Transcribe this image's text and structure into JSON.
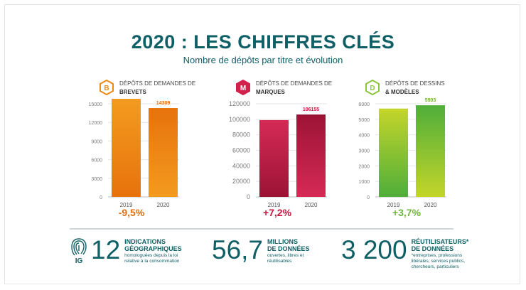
{
  "header": {
    "title": "2020 : LES CHIFFRES CLÉS",
    "subtitle": "Nombre de dépôts par titre et évolution"
  },
  "panels": [
    {
      "badge": "B",
      "line1": "DÉPÔTS DE DEMANDES DE",
      "line2": "BREVETS",
      "change": "-9,5%",
      "color": "#ef8a10"
    },
    {
      "badge": "M",
      "line1": "DÉPÔTS DE DEMANDES DE",
      "line2": "MARQUES",
      "change": "+7,2%",
      "color": "#d3214c"
    },
    {
      "badge": "D",
      "line1": "DÉPÔTS DE DESSINS",
      "line2": "& MODÈLES",
      "change": "+3,7%",
      "color": "#8cc63f"
    }
  ],
  "chart_data": [
    {
      "type": "bar",
      "categories": [
        "2019",
        "2020"
      ],
      "values": [
        15800,
        14309
      ],
      "value_labels": [
        "",
        "14309"
      ],
      "ylim": [
        0,
        15000
      ],
      "yticks": [
        "0",
        "3000",
        "6000",
        "9000",
        "12000",
        "15000"
      ],
      "colors": [
        "#f39b1f",
        "#e7720c"
      ]
    },
    {
      "type": "bar",
      "categories": [
        "2019",
        "2020"
      ],
      "values": [
        99000,
        106155
      ],
      "value_labels": [
        "",
        "106155"
      ],
      "ylim": [
        0,
        120000
      ],
      "yticks": [
        "0",
        "20000",
        "40000",
        "60000",
        "80000",
        "100000",
        "120000"
      ],
      "colors": [
        "#d52a55",
        "#9c1336"
      ]
    },
    {
      "type": "bar",
      "categories": [
        "2019",
        "2020"
      ],
      "values": [
        5690,
        5903
      ],
      "value_labels": [
        "",
        "5903"
      ],
      "ylim": [
        0,
        6000
      ],
      "yticks": [
        "0",
        "1000",
        "2000",
        "3000",
        "4000",
        "5000",
        "6000"
      ],
      "colors": [
        "#c4d52a",
        "#4fae3a"
      ]
    }
  ],
  "stats": [
    {
      "icon_text": "IG",
      "number": "12",
      "head1": "INDICATIONS",
      "head2": "GÉOGRAPHIQUES",
      "sub": "homologuées depuis la loi relative à la consommation"
    },
    {
      "number": "56,7",
      "head1": "MILLIONS",
      "head2": "DE DONNÉES",
      "sub": "ouvertes, libres et réutilisables"
    },
    {
      "number": "3 200",
      "head1": "RÉUTILISATEURS*",
      "head2": "DE DONNÉES",
      "sub": "*entreprises, professions libérales, services publics, chercheurs, particuliers"
    }
  ]
}
